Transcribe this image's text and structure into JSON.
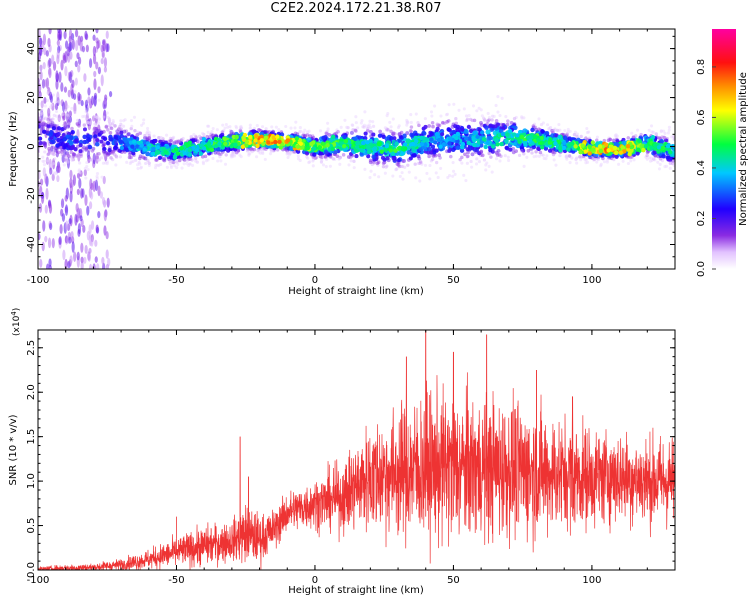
{
  "title": "C2E2.2024.172.21.38.R07",
  "chart_data": [
    {
      "type": "heatmap",
      "title": "",
      "xlabel": "Height of straight line (km)",
      "ylabel": "Frequency (Hz)",
      "xlim": [
        -100,
        130
      ],
      "ylim": [
        -50,
        48
      ],
      "x_ticks": [
        -100,
        -50,
        0,
        50,
        100
      ],
      "y_ticks": [
        -40,
        -20,
        0,
        20,
        40
      ],
      "x_tick_labels": [
        "-100",
        "-50",
        "0",
        "50",
        "100"
      ],
      "y_tick_labels": [
        "-40",
        "-20",
        "0",
        "20",
        "40"
      ],
      "colorbar": {
        "label": "Normalized spectral amplitude",
        "range": [
          0,
          0.95
        ],
        "ticks": [
          0.0,
          0.2,
          0.4,
          0.6,
          0.8
        ],
        "tick_labels": [
          "0.0",
          "0.2",
          "0.4",
          "0.6",
          "0.8"
        ],
        "colormap": "rainbow (white→violet→blue→cyan→green→yellow→orange→red→magenta)"
      },
      "ridge": {
        "description": "dense band of spectral energy near 0 Hz",
        "x": [
          -100,
          -90,
          -80,
          -70,
          -60,
          -50,
          -40,
          -30,
          -20,
          -10,
          0,
          10,
          20,
          30,
          40,
          50,
          60,
          70,
          80,
          90,
          100,
          110,
          120,
          130
        ],
        "freq": [
          5,
          3,
          2,
          2,
          -1,
          -2,
          0,
          2,
          3,
          2,
          0,
          1,
          0,
          -1,
          2,
          3,
          3,
          4,
          3,
          1,
          -1,
          -1,
          1,
          -2
        ],
        "peak_amplitude": [
          0.25,
          0.35,
          0.3,
          0.35,
          0.45,
          0.5,
          0.5,
          0.6,
          0.8,
          0.75,
          0.6,
          0.55,
          0.5,
          0.55,
          0.45,
          0.4,
          0.45,
          0.5,
          0.55,
          0.5,
          0.75,
          0.8,
          0.6,
          0.45
        ]
      },
      "spread_halfwidth_hz": [
        10,
        10,
        9,
        8,
        6,
        5,
        5,
        5,
        4,
        4,
        5,
        6,
        8,
        8,
        9,
        10,
        9,
        8,
        6,
        5,
        4,
        4,
        5,
        6
      ]
    },
    {
      "type": "line",
      "title": "",
      "xlabel": "Height of straight line (km)",
      "ylabel": "SNR (10 * v/v)",
      "y_multiplier_label": "(x10",
      "y_multiplier_exp": "4",
      "y_multiplier_close": ")",
      "xlim": [
        -100,
        130
      ],
      "ylim": [
        0,
        2.7
      ],
      "x_ticks": [
        -100,
        -50,
        0,
        50,
        100
      ],
      "y_ticks": [
        0.0,
        0.5,
        1.0,
        1.5,
        2.0,
        2.5
      ],
      "x_tick_labels": [
        "-100",
        "-50",
        "0",
        "50",
        "100"
      ],
      "y_tick_labels": [
        "0.0",
        "0.5",
        "1.0",
        "1.5",
        "2.0",
        "2.5"
      ],
      "color": "#ee3333",
      "envelope": {
        "x": [
          -100,
          -90,
          -80,
          -70,
          -60,
          -50,
          -40,
          -30,
          -25,
          -20,
          -15,
          -10,
          0,
          5,
          10,
          15,
          20,
          30,
          40,
          50,
          60,
          70,
          80,
          90,
          100,
          110,
          120,
          130
        ],
        "mean": [
          0.01,
          0.02,
          0.03,
          0.06,
          0.12,
          0.2,
          0.27,
          0.33,
          0.4,
          0.35,
          0.45,
          0.65,
          0.75,
          0.78,
          0.82,
          0.95,
          1.05,
          1.1,
          1.15,
          1.15,
          1.15,
          1.15,
          1.1,
          1.08,
          1.05,
          1.05,
          1.0,
          1.0
        ],
        "spread": [
          0.02,
          0.04,
          0.04,
          0.06,
          0.1,
          0.15,
          0.2,
          0.2,
          0.3,
          0.25,
          0.2,
          0.2,
          0.25,
          0.3,
          0.35,
          0.45,
          0.55,
          0.65,
          0.75,
          0.75,
          0.7,
          0.7,
          0.65,
          0.55,
          0.5,
          0.45,
          0.45,
          0.45
        ]
      },
      "notable_peaks": [
        {
          "x": -50,
          "y": 0.35
        },
        {
          "x": -27,
          "y": 1.5
        },
        {
          "x": -24,
          "y": 1.05
        },
        {
          "x": 33,
          "y": 2.4
        },
        {
          "x": 40,
          "y": 2.75
        },
        {
          "x": 50,
          "y": 2.45
        },
        {
          "x": 62,
          "y": 2.65
        },
        {
          "x": 80,
          "y": 2.25
        },
        {
          "x": 93,
          "y": 1.95
        },
        {
          "x": 130,
          "y": 1.95
        }
      ]
    }
  ]
}
